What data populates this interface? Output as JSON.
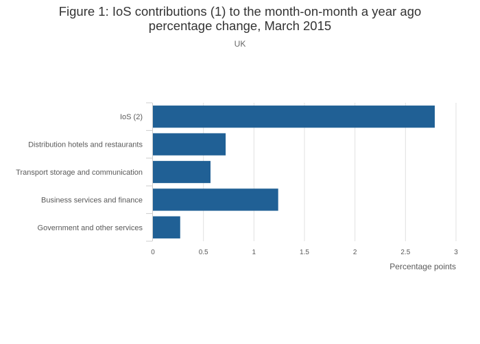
{
  "chart_data": {
    "type": "bar",
    "orientation": "horizontal",
    "title": "Figure 1: IoS contributions (1) to the month-on-month a year ago percentage change, March 2015",
    "subtitle": "UK",
    "xlabel": "Percentage points",
    "ylabel": "",
    "categories": [
      "IoS (2)",
      "Distribution hotels and restaurants",
      "Transport storage and communication",
      "Business services and finance",
      "Government and other services"
    ],
    "values": [
      2.79,
      0.72,
      0.57,
      1.24,
      0.27
    ],
    "xlim": [
      0,
      3
    ],
    "xticks": [
      0,
      0.5,
      1,
      1.5,
      2,
      2.5,
      3
    ],
    "xtick_labels": [
      "0",
      "0.5",
      "1",
      "1.5",
      "2",
      "2.5",
      "3"
    ],
    "grid": true,
    "legend": "none",
    "bar_color": "#206095",
    "grid_color": "#e0e0e0",
    "axis_color": "#cccccc"
  }
}
